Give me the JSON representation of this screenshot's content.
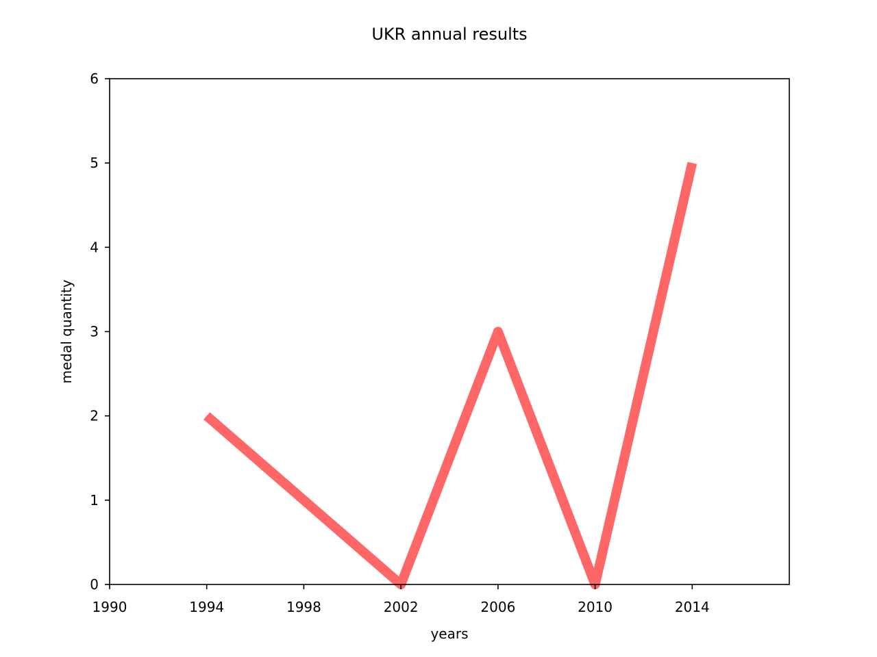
{
  "chart_data": {
    "type": "line",
    "title": "UKR annual results",
    "xlabel": "years",
    "ylabel": "medal quantity",
    "xlim": [
      1990,
      2018
    ],
    "ylim": [
      0,
      6
    ],
    "x_ticks": [
      1990,
      1994,
      1998,
      2002,
      2006,
      2010,
      2014
    ],
    "y_ticks": [
      0,
      1,
      2,
      3,
      4,
      5,
      6
    ],
    "grid": false,
    "series": [
      {
        "color": "#ff6666",
        "points": [
          {
            "x": 1994,
            "y": 2
          },
          {
            "x": 2002,
            "y": 0
          },
          {
            "x": 2006,
            "y": 3
          },
          {
            "x": 2010,
            "y": 0
          },
          {
            "x": 2014,
            "y": 5
          }
        ]
      }
    ]
  }
}
